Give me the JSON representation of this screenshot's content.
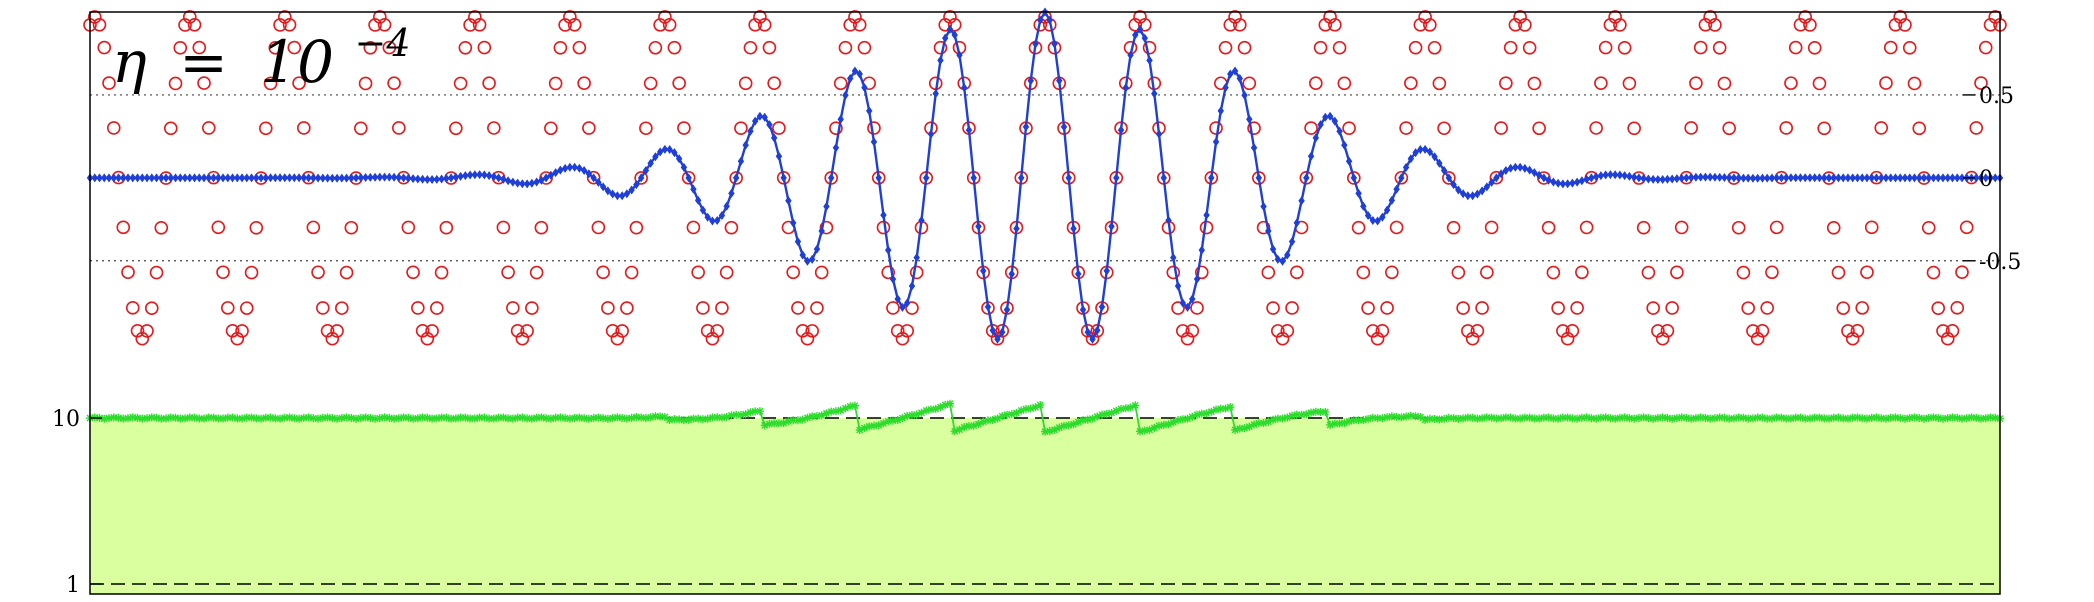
{
  "chart_data": {
    "type": "line",
    "title": {
      "symbol": "η",
      "relation": "=",
      "base": "10",
      "exponent": "−4"
    },
    "x_range": [
      0,
      200
    ],
    "top_panel": {
      "y_range": [
        -1.05,
        1.0
      ],
      "ticks": [
        {
          "value": 0.5,
          "label": "0.5"
        },
        {
          "value": 0,
          "label": "0"
        },
        {
          "value": -0.5,
          "label": "-0.5"
        }
      ],
      "gridlines": [
        0.5,
        -0.5
      ],
      "series": [
        {
          "role": "exact",
          "marker": "circle",
          "color": "#e41a1c",
          "amplitude": 0.97,
          "period": 9.95,
          "phase": 0,
          "points": 403
        },
        {
          "role": "approximation",
          "marker": "diamond-line",
          "color": "#1f3fd6",
          "amplitude": 1.0,
          "period": 9.95,
          "phase": 0,
          "center": 100,
          "width": 30,
          "points": 403
        }
      ]
    },
    "bottom_panel": {
      "scale": "log",
      "y_range": [
        0.87,
        25
      ],
      "ticks": [
        {
          "value": 10,
          "label": "10"
        },
        {
          "value": 1,
          "label": "1"
        }
      ],
      "reference_lines": [
        10,
        1
      ],
      "fill": {
        "color": "#d9ff9e",
        "up_to": 10
      },
      "series": [
        {
          "role": "ratio",
          "marker": "star",
          "color": "#2ddc2d",
          "baseline": 10,
          "points": 403
        }
      ]
    }
  }
}
